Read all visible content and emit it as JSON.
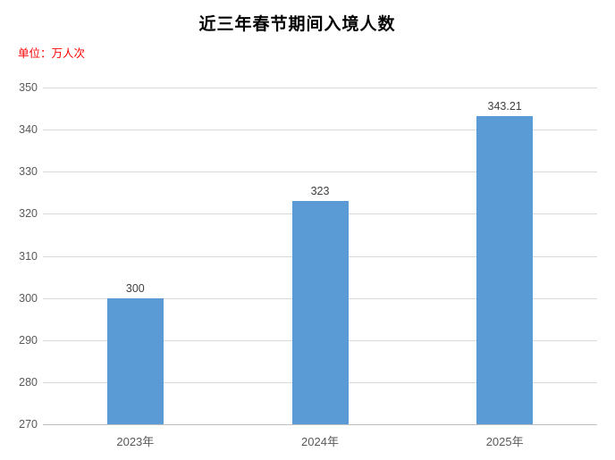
{
  "chart": {
    "title": "近三年春节期间入境人数",
    "unit_label": "单位：万人次"
  },
  "chart_data": {
    "type": "bar",
    "title": "近三年春节期间入境人数",
    "unit_label": "单位：万人次",
    "categories": [
      "2023年",
      "2024年",
      "2025年"
    ],
    "values": [
      300,
      323,
      343.21
    ],
    "value_labels": [
      "300",
      "323",
      "343.21"
    ],
    "ylim": [
      270,
      350
    ],
    "ytick_step": 10,
    "ytick_labels": [
      "270",
      "280",
      "290",
      "300",
      "310",
      "320",
      "330",
      "340",
      "350"
    ],
    "grid": true,
    "legend": false,
    "xlabel": "",
    "ylabel": "",
    "colors": {
      "bar": "#5B9BD5",
      "gridline": "#D9D9D9",
      "axis_line": "#BFBFBF",
      "tick_label": "#595959",
      "value_label": "#404040",
      "title": "#000000",
      "unit_label": "#FF0000"
    }
  }
}
